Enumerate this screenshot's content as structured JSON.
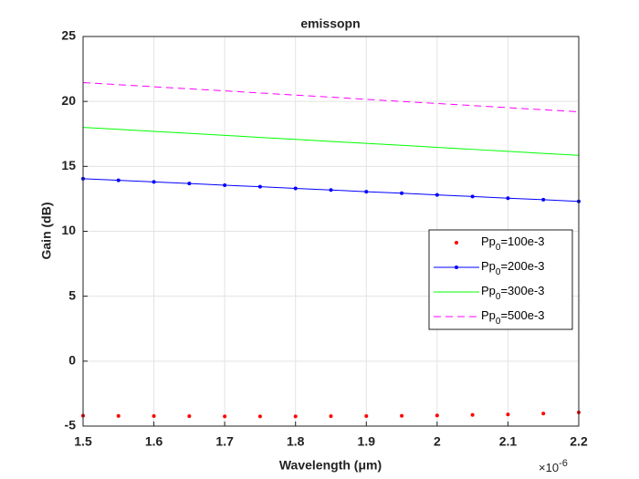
{
  "chart_data": {
    "type": "line",
    "title": "emissopn",
    "x_label": "Wavelength (μm)",
    "y_label": "Gain (dB)",
    "x_multiplier": {
      "base": "×10",
      "exponent": "-6"
    },
    "x": [
      1.5,
      1.55,
      1.6,
      1.65,
      1.7,
      1.75,
      1.8,
      1.85,
      1.9,
      1.95,
      2.0,
      2.05,
      2.1,
      2.15,
      2.2
    ],
    "series": [
      {
        "name": [
          "Pp",
          "0",
          "=100e-3"
        ],
        "color": "#ff0000",
        "line_style": "none",
        "marker": "dot",
        "values": [
          -4.2,
          -4.22,
          -4.23,
          -4.24,
          -4.25,
          -4.25,
          -4.25,
          -4.24,
          -4.23,
          -4.21,
          -4.18,
          -4.14,
          -4.1,
          -4.03,
          -3.95
        ]
      },
      {
        "name": [
          "Pp",
          "0",
          "=200e-3"
        ],
        "color": "#0000ff",
        "line_style": "solid",
        "marker": "dot",
        "values": [
          14.05,
          13.93,
          13.8,
          13.68,
          13.55,
          13.43,
          13.3,
          13.18,
          13.05,
          12.93,
          12.8,
          12.68,
          12.55,
          12.43,
          12.3
        ]
      },
      {
        "name": [
          "Pp",
          "0",
          "=300e-3"
        ],
        "color": "#00ff00",
        "line_style": "solid",
        "marker": "none",
        "values": [
          18.0,
          17.85,
          17.69,
          17.54,
          17.39,
          17.23,
          17.08,
          16.92,
          16.77,
          16.62,
          16.46,
          16.31,
          16.16,
          16.0,
          15.85
        ]
      },
      {
        "name": [
          "Pp",
          "0",
          "=500e-3"
        ],
        "color": "#ff00ff",
        "line_style": "dashed",
        "marker": "none",
        "values": [
          21.45,
          21.29,
          21.13,
          20.97,
          20.81,
          20.65,
          20.49,
          20.33,
          20.16,
          20.0,
          19.84,
          19.68,
          19.52,
          19.36,
          19.2
        ]
      }
    ],
    "xlim": [
      1.5,
      2.2
    ],
    "xticks": [
      1.5,
      1.6,
      1.7,
      1.8,
      1.9,
      2,
      2.1,
      2.2
    ],
    "ylim": [
      -5,
      25
    ],
    "yticks": [
      -5,
      0,
      5,
      10,
      15,
      20,
      25
    ],
    "grid": true,
    "legend_position": "east"
  }
}
